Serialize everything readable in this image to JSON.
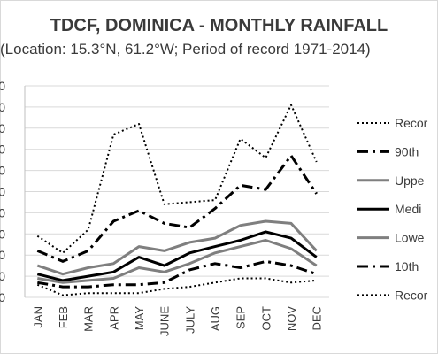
{
  "chart_data": {
    "type": "line",
    "title": "TDCF, DOMINICA - MONTHLY RAINFALL",
    "subtitle": "(Location: 15.3°N, 61.2°W; Period of record 1971-2014)",
    "categories": [
      "JAN",
      "FEB",
      "MAR",
      "APR",
      "MAY",
      "JUNE",
      "JULY",
      "AUG",
      "SEP",
      "OCT",
      "NOV",
      "DEC"
    ],
    "y_tick_labels": [
      "0",
      "0",
      "0",
      "0",
      "0",
      "0",
      "0",
      "0",
      "0",
      "0",
      "0"
    ],
    "ylim": [
      0,
      100
    ],
    "grid": true,
    "legend_position": "right",
    "series": [
      {
        "name": "Recor",
        "color": "#000000",
        "style": "dotted",
        "width": 2,
        "values": [
          29,
          21,
          32,
          77,
          82,
          44,
          45,
          46,
          75,
          66,
          91,
          64
        ]
      },
      {
        "name": "90th",
        "color": "#000000",
        "style": "dashdot",
        "width": 3,
        "values": [
          22,
          17,
          22,
          36,
          41,
          35,
          33,
          42,
          53,
          51,
          67,
          49
        ]
      },
      {
        "name": "Uppe",
        "color": "#7f7f7f",
        "style": "solid",
        "width": 3,
        "values": [
          15,
          11,
          14,
          16,
          24,
          22,
          26,
          28,
          34,
          36,
          35,
          22
        ]
      },
      {
        "name": "Medi",
        "color": "#000000",
        "style": "solid",
        "width": 3,
        "values": [
          11,
          8,
          10,
          12,
          19,
          15,
          21,
          24,
          27,
          31,
          28,
          19
        ]
      },
      {
        "name": "Lowe",
        "color": "#7f7f7f",
        "style": "solid",
        "width": 3,
        "values": [
          9,
          7,
          8,
          9,
          14,
          12,
          16,
          21,
          24,
          27,
          23,
          15
        ]
      },
      {
        "name": "10th",
        "color": "#000000",
        "style": "dashdot",
        "width": 3,
        "values": [
          7,
          5,
          5,
          6,
          6,
          7,
          13,
          16,
          14,
          17,
          15,
          11
        ]
      },
      {
        "name": "Recor",
        "color": "#000000",
        "style": "dotted",
        "width": 2,
        "values": [
          6,
          1,
          2,
          2,
          2,
          4,
          5,
          7,
          9,
          9,
          7,
          8
        ]
      }
    ]
  }
}
